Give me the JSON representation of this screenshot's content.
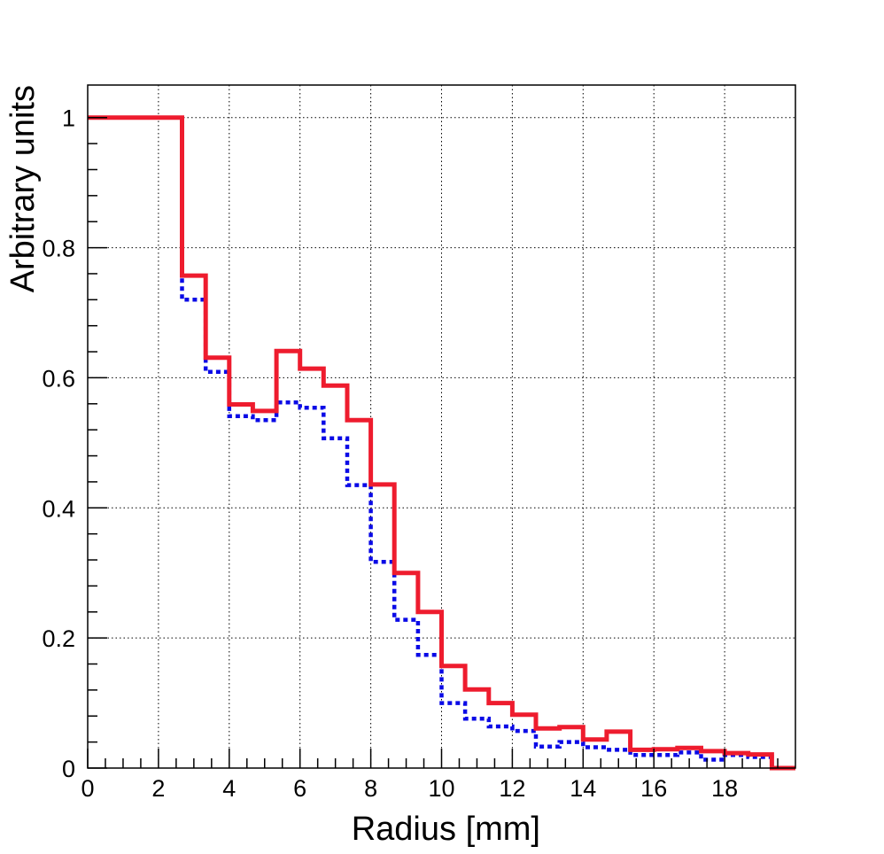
{
  "chart_data": {
    "type": "line",
    "step": true,
    "title": "",
    "xlabel": "Radius [mm]",
    "ylabel": "Arbitrary units",
    "xlim": [
      0,
      20
    ],
    "ylim": [
      0,
      1.05
    ],
    "grid": true,
    "x_ticks": [
      0,
      2,
      4,
      6,
      8,
      10,
      12,
      14,
      16,
      18
    ],
    "x_tick_labels": [
      "0",
      "2",
      "4",
      "6",
      "8",
      "10",
      "12",
      "14",
      "16",
      "18"
    ],
    "y_ticks": [
      0,
      0.2,
      0.4,
      0.6,
      0.8,
      1
    ],
    "y_tick_labels": [
      "0",
      "0.2",
      "0.4",
      "0.6",
      "0.8",
      "1"
    ],
    "bin_edges": [
      0,
      0.667,
      1.333,
      2,
      2.667,
      3.333,
      4,
      4.667,
      5.333,
      6,
      6.667,
      7.333,
      8,
      8.667,
      9.333,
      10,
      10.667,
      11.333,
      12,
      12.667,
      13.333,
      14,
      14.667,
      15.333,
      16,
      16.667,
      17.333,
      18,
      18.667,
      19.333,
      20
    ],
    "series": [
      {
        "color": "#ee1c2e",
        "style": "solid",
        "values": [
          1.0,
          1.0,
          1.0,
          1.0,
          0.757,
          0.631,
          0.559,
          0.549,
          0.641,
          0.614,
          0.588,
          0.535,
          0.436,
          0.3,
          0.24,
          0.157,
          0.121,
          0.1,
          0.082,
          0.061,
          0.063,
          0.044,
          0.056,
          0.028,
          0.029,
          0.031,
          0.026,
          0.023,
          0.021,
          0.0
        ]
      },
      {
        "color": "#0a0ae6",
        "style": "dotted",
        "values": [
          1.0,
          1.0,
          1.0,
          1.0,
          0.72,
          0.609,
          0.541,
          0.535,
          0.562,
          0.554,
          0.507,
          0.435,
          0.317,
          0.228,
          0.174,
          0.1,
          0.076,
          0.064,
          0.057,
          0.033,
          0.04,
          0.032,
          0.028,
          0.02,
          0.02,
          0.024,
          0.013,
          0.02,
          0.017,
          0.0
        ]
      }
    ]
  }
}
